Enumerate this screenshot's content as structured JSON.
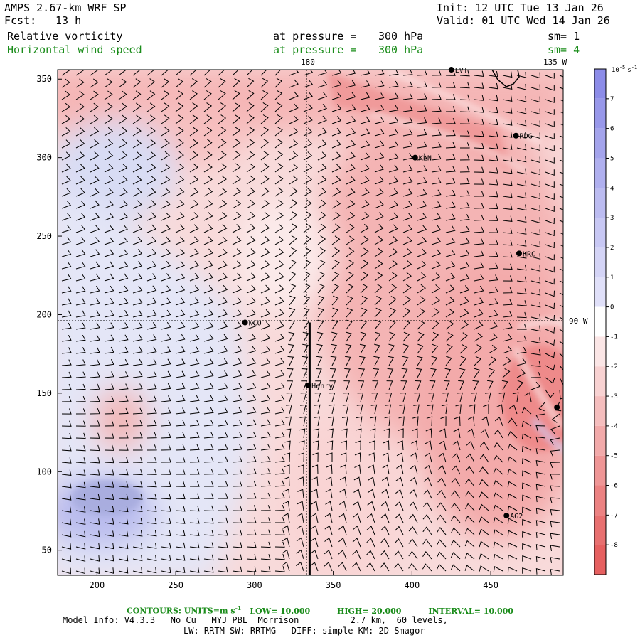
{
  "header": {
    "model": "AMPS 2.67-km WRF SP",
    "fcst_label": "Fcst:",
    "fcst_value": "13 h",
    "init": "Init: 12 UTC Tue 13 Jan 26",
    "valid": "Valid: 01 UTC Wed 14 Jan 26"
  },
  "fields": [
    {
      "name": "Relative vorticity",
      "pressure_label": "at pressure =",
      "pressure_value": "300 hPa",
      "sm": "sm= 1",
      "color": "#000000"
    },
    {
      "name": "Horizontal wind speed",
      "pressure_label": "at pressure =",
      "pressure_value": "300 hPa",
      "sm": "sm= 4",
      "color": "#1a8c1a"
    }
  ],
  "map": {
    "x_ticks": [
      "200",
      "250",
      "300",
      "350",
      "400",
      "450"
    ],
    "y_ticks": [
      "50",
      "100",
      "150",
      "200",
      "250",
      "300",
      "350"
    ],
    "x_range": [
      175,
      496
    ],
    "y_range": [
      34,
      356
    ],
    "meridian_labels": {
      "lon_180": "180",
      "lon_135w": "135 W",
      "lon_90w": "90 W"
    },
    "stations": [
      {
        "name": "LVT",
        "x": 425,
        "y": 356
      },
      {
        "name": "RDG",
        "x": 466,
        "y": 314
      },
      {
        "name": "KLN",
        "x": 402,
        "y": 300
      },
      {
        "name": "HRC",
        "x": 468,
        "y": 239
      },
      {
        "name": "NCO",
        "x": 294,
        "y": 195
      },
      {
        "name": "Henry",
        "x": 334,
        "y": 155
      },
      {
        "name": "",
        "x": 492,
        "y": 141
      },
      {
        "name": "AG2",
        "x": 460,
        "y": 72
      }
    ],
    "cross_section": {
      "x": 335,
      "y_from": 34,
      "y_to": 195
    },
    "crosshair": {
      "x": 331,
      "y": 195
    }
  },
  "colorbar": {
    "units_base": "10",
    "units_exp": "-5",
    "units_tail": "s",
    "units_tail_exp": "-1",
    "labels": [
      "7",
      "6",
      "5",
      "4",
      "3",
      "2",
      "1",
      "0",
      "-1",
      "-2",
      "-3",
      "-4",
      "-5",
      "-6",
      "-7",
      "-8"
    ]
  },
  "footer": {
    "contours": "CONTOURS:  UNITS=m s",
    "contours_exp": "-1",
    "low": "LOW=  10.000",
    "high": "HIGH=  20.000",
    "interval": "INTERVAL=  10.000",
    "model_line1": "Model Info: V4.3.3   No Cu   MYJ PBL  Morrison          2.7 km,  60 levels,",
    "model_line2": "LW: RRTM SW: RRTMG   DIFF: simple KM: 2D Smagor"
  }
}
